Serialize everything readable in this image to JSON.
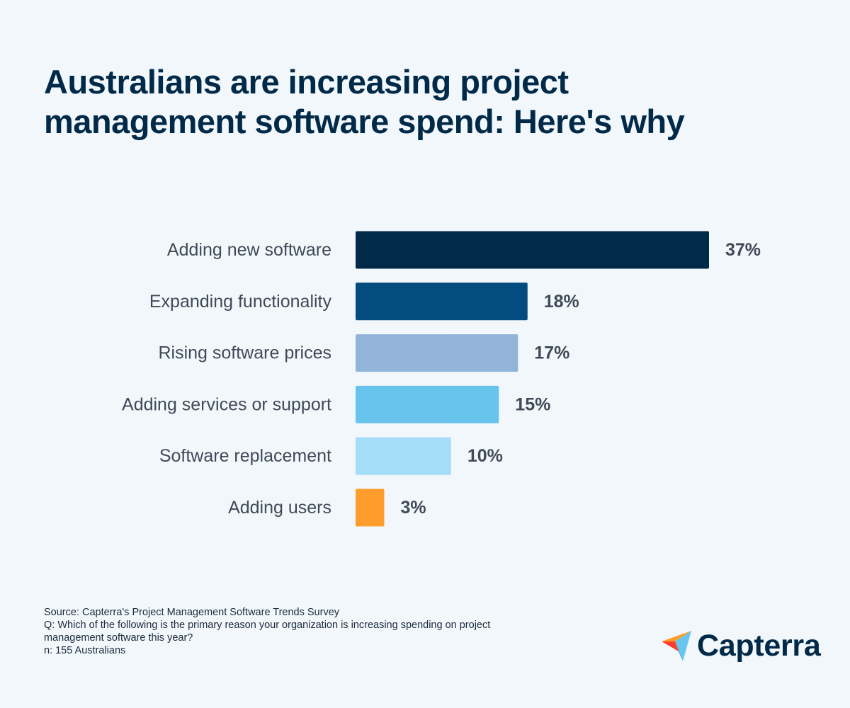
{
  "title": {
    "line1": "Australians are increasing project",
    "line2": "management software spend: Here's why"
  },
  "chart_data": {
    "type": "bar",
    "orientation": "horizontal",
    "categories": [
      "Adding new software",
      "Expanding functionality",
      "Rising software prices",
      "Adding services or support",
      "Software replacement",
      "Adding users"
    ],
    "values": [
      37,
      18,
      17,
      15,
      10,
      3
    ],
    "value_labels": [
      "37%",
      "18%",
      "17%",
      "15%",
      "10%",
      "3%"
    ],
    "colors": [
      "#012a48",
      "#044b80",
      "#93b4d9",
      "#68c3ed",
      "#a3ddf8",
      "#ff9d2c"
    ],
    "unit": "%",
    "xlim": [
      0,
      37
    ],
    "grid": false,
    "legend": "none"
  },
  "footer": {
    "source": "Source: Capterra's Project Management Software Trends Survey",
    "question_line1": "Q: Which of the following is the primary reason your organization is increasing spending on project",
    "question_line2": "management software this year?",
    "sample": "n: 155 Australians"
  },
  "brand": {
    "name": "Capterra",
    "colors": {
      "orange": "#ff9d28",
      "blue": "#68c5ed",
      "navy": "#044d80",
      "red": "#ff3d2e"
    }
  }
}
